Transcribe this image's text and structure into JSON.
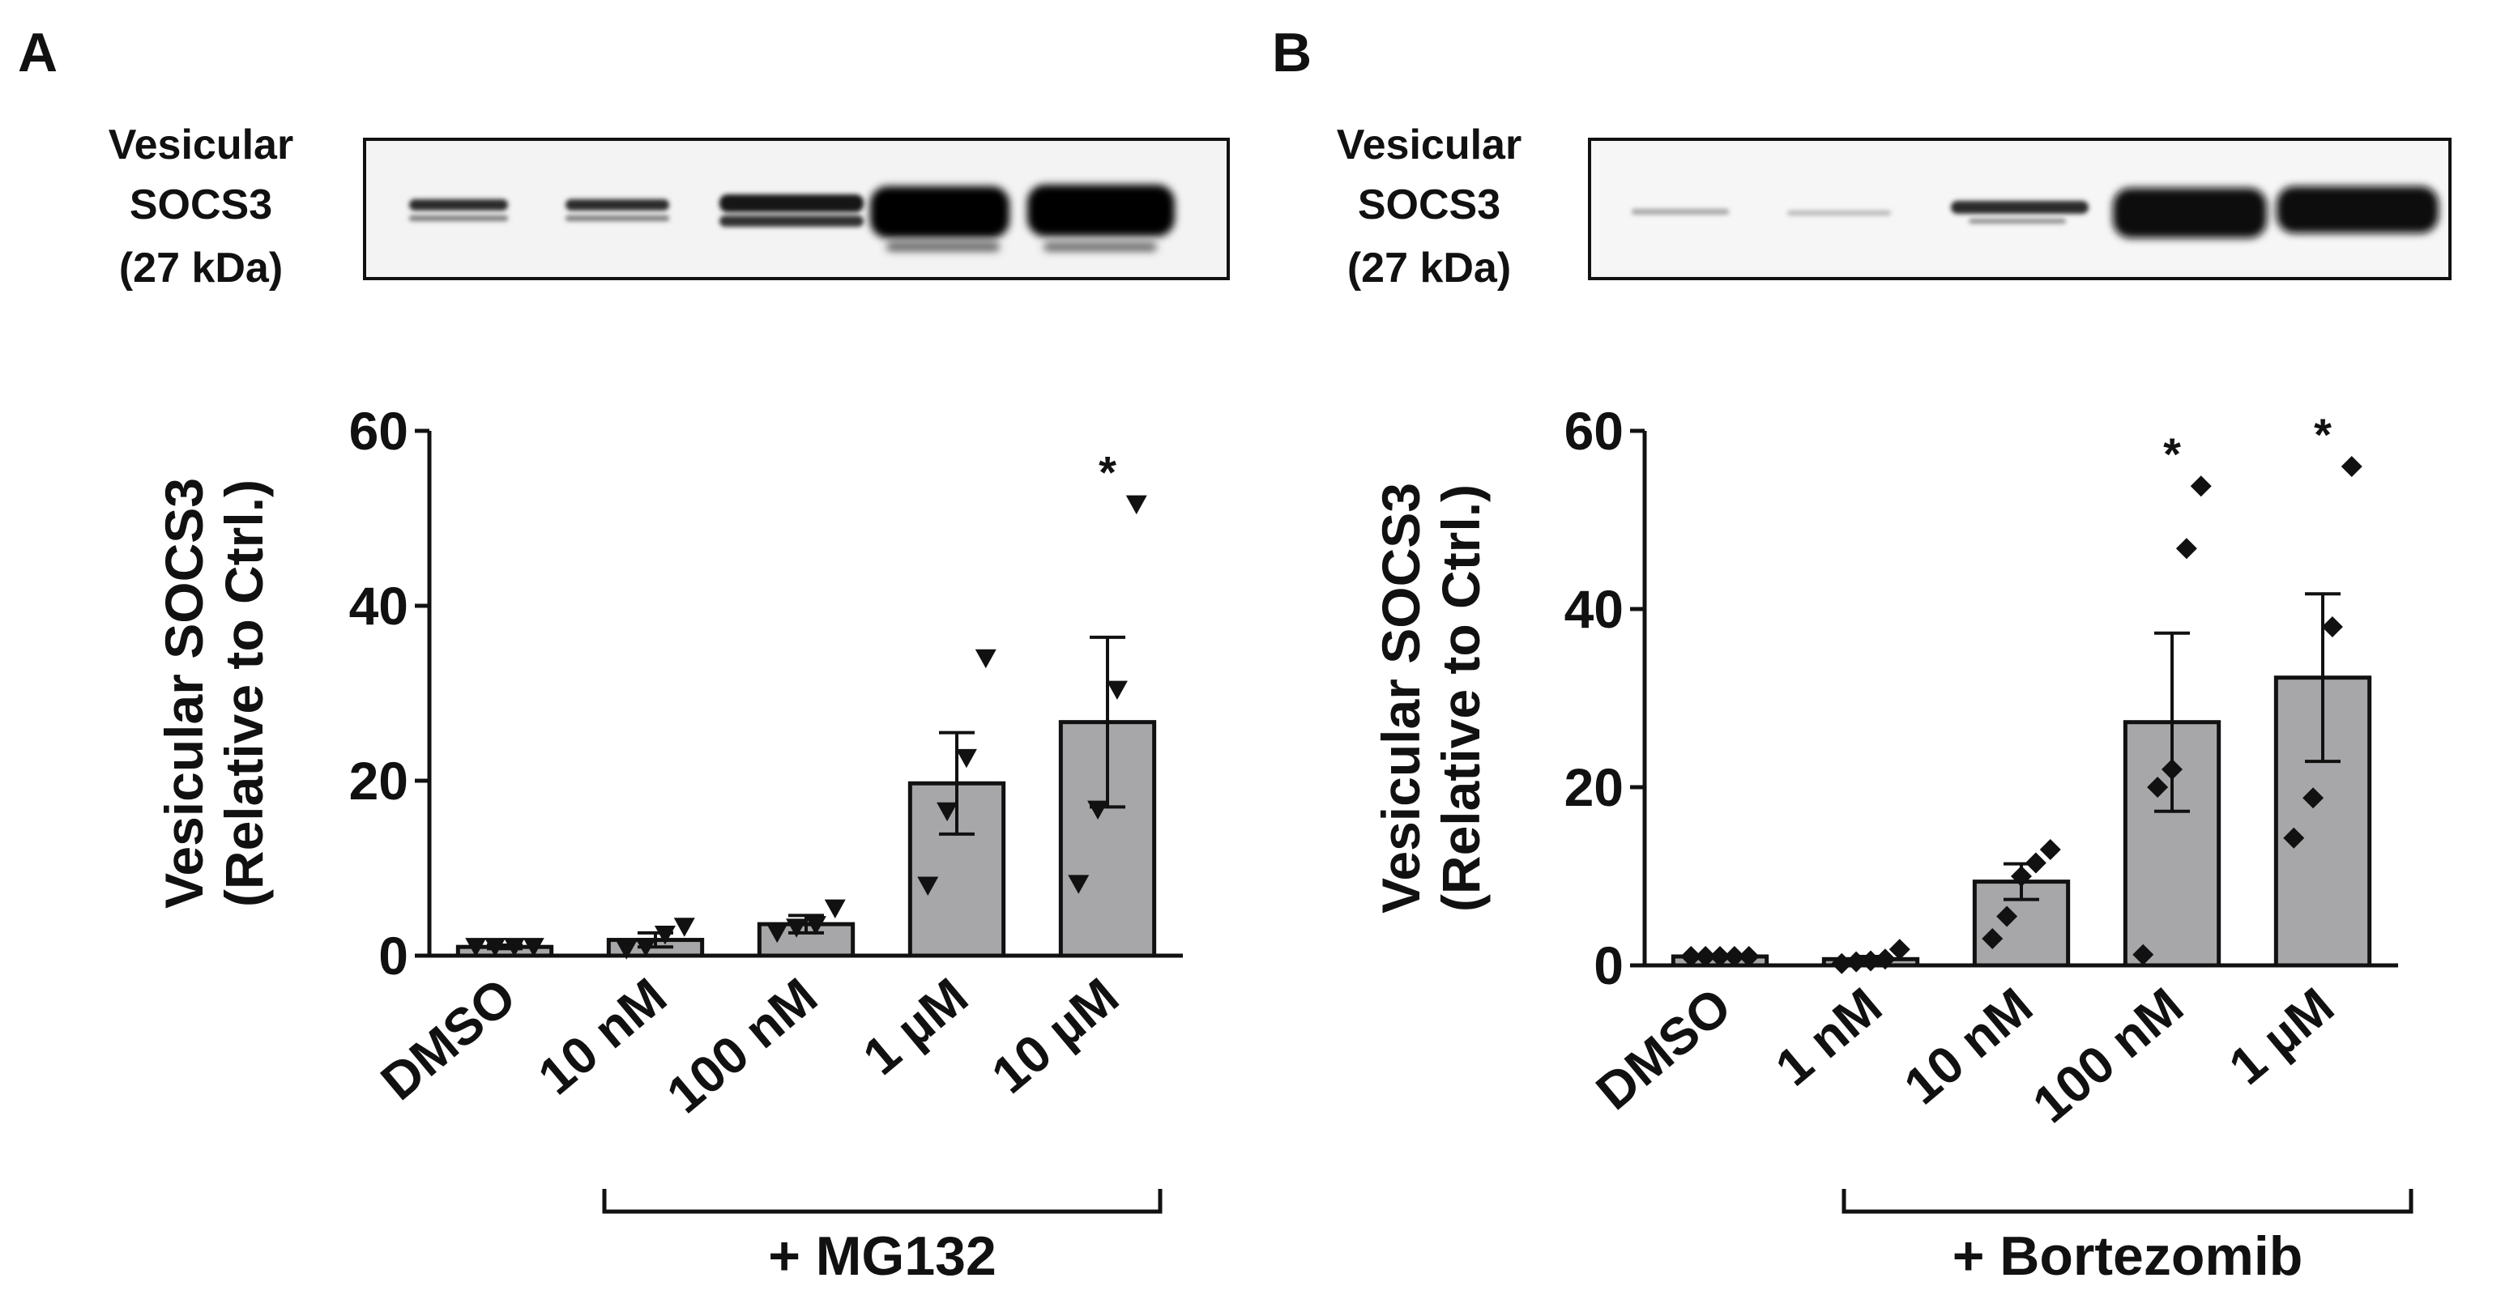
{
  "panels": {
    "a": {
      "letter": "A",
      "blot": {
        "label_lines": [
          "Vesicular",
          "SOCS3",
          "(27 kDa)"
        ]
      },
      "treatment": "+ MG132"
    },
    "b": {
      "letter": "B",
      "blot": {
        "label_lines": [
          "Vesicular",
          "SOCS3",
          "(27 kDa)"
        ]
      },
      "treatment": "+ Bortezomib"
    }
  },
  "colors": {
    "bar_fill": "#a7a7aa",
    "ink": "#111111",
    "background": "#ffffff"
  },
  "chart_data": [
    {
      "type": "bar",
      "panel": "A",
      "title": "",
      "xlabel": "",
      "ylabel_lines": [
        "Vesicular SOCS3",
        "(Relative to Ctrl.)"
      ],
      "ylim": [
        0,
        60
      ],
      "yticks": [
        0,
        20,
        40,
        60
      ],
      "categories": [
        "DMSO",
        "10 nM",
        "100 nM",
        "1 µM",
        "10 µM"
      ],
      "values": [
        1.0,
        1.8,
        3.6,
        19.7,
        26.7
      ],
      "sem": [
        0.2,
        0.8,
        1.0,
        5.8,
        9.7
      ],
      "points": [
        [
          1.0,
          1.0,
          1.0,
          1.0
        ],
        [
          0.7,
          1.0,
          2.4,
          3.3
        ],
        [
          2.6,
          3.2,
          3.5,
          5.4
        ],
        [
          8.0,
          16.5,
          22.6,
          34.0
        ],
        [
          8.2,
          16.7,
          30.4,
          51.6
        ]
      ],
      "point_marker": "triangle-down",
      "significance": [
        "",
        "",
        "",
        "",
        "*"
      ]
    },
    {
      "type": "bar",
      "panel": "B",
      "title": "",
      "xlabel": "",
      "ylabel_lines": [
        "Vesicular SOCS3",
        "(Relative to Ctrl.)"
      ],
      "ylim": [
        0,
        60
      ],
      "yticks": [
        0,
        20,
        40,
        60
      ],
      "categories": [
        "DMSO",
        "1 nM",
        "10 nM",
        "100 nM",
        "1 µM"
      ],
      "values": [
        1.0,
        0.7,
        9.4,
        27.3,
        32.3
      ],
      "sem": [
        0.1,
        0.3,
        2.0,
        10.0,
        9.4
      ],
      "points": [
        [
          1.0,
          1.0,
          1.0,
          1.0,
          1.0
        ],
        [
          0.2,
          0.4,
          0.5,
          0.7,
          1.8
        ],
        [
          3.0,
          5.5,
          10.0,
          11.5,
          13.0
        ],
        [
          1.2,
          20.0,
          22.0,
          46.8,
          53.8
        ],
        [
          14.3,
          18.8,
          38.0,
          56.0
        ]
      ],
      "point_marker": "diamond",
      "significance": [
        "",
        "",
        "",
        "*",
        "*"
      ]
    }
  ]
}
